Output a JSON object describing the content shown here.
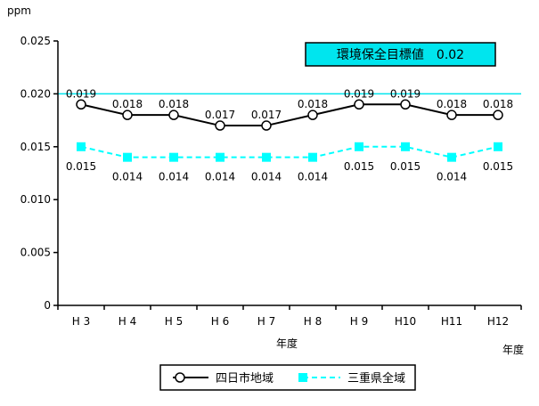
{
  "chart_data": {
    "type": "line",
    "ylabel": "ppm",
    "xlabel": "年度",
    "xlabel_side": "年度",
    "categories": [
      "H 3",
      "H 4",
      "H 5",
      "H 6",
      "H 7",
      "H 8",
      "H 9",
      "H10",
      "H11",
      "H12"
    ],
    "yticks": [
      "0.025",
      "0.020",
      "0.015",
      "0.010",
      "0.005",
      "0"
    ],
    "ylim": [
      0,
      0.025
    ],
    "grid": false,
    "legend_position": "bottom",
    "target": {
      "label": "環境保全目標値　0.02",
      "value": 0.02,
      "color": "#00e5ee"
    },
    "series": [
      {
        "name": "四日市地域",
        "values": [
          0.019,
          0.018,
          0.018,
          0.017,
          0.017,
          0.018,
          0.019,
          0.019,
          0.018,
          0.018
        ],
        "labels": [
          "0.019",
          "0.018",
          "0.018",
          "0.017",
          "0.017",
          "0.018",
          "0.019",
          "0.019",
          "0.018",
          "0.018"
        ],
        "color": "#000000",
        "marker": "circle-open",
        "line": "solid"
      },
      {
        "name": "三重県全域",
        "values": [
          0.015,
          0.014,
          0.014,
          0.014,
          0.014,
          0.014,
          0.015,
          0.015,
          0.014,
          0.015
        ],
        "labels": [
          "0.015",
          "0.014",
          "0.014",
          "0.014",
          "0.014",
          "0.014",
          "0.015",
          "0.015",
          "0.014",
          "0.015"
        ],
        "color": "#00ffff",
        "marker": "square-filled",
        "line": "dashed"
      }
    ]
  }
}
